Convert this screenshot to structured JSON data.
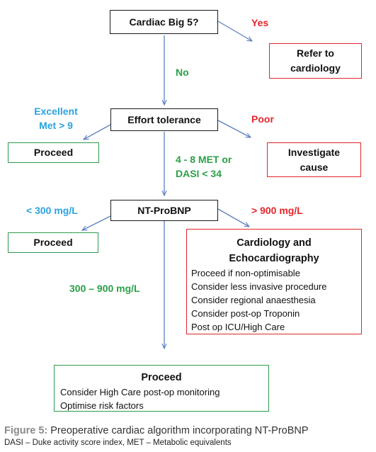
{
  "colors": {
    "arrow": "#5b7fc0",
    "red": "#e3262b",
    "green": "#2aa048",
    "blue": "#2ba3dd"
  },
  "nodes": {
    "cardiac_big5": "Cardiac Big 5?",
    "refer_cardiology": [
      "Refer to",
      "cardiology"
    ],
    "effort_tolerance": "Effort tolerance",
    "proceed_1": "Proceed",
    "investigate_cause": [
      "Investigate",
      "cause"
    ],
    "nt_probnp": "NT-ProBNP",
    "proceed_2": "Proceed",
    "cardio_echo": {
      "title": [
        "Cardiology and",
        "Echocardiography"
      ],
      "items": [
        "Proceed if non-optimisable",
        "Consider less invasive procedure",
        "Consider regional anaesthesia",
        "Consider post-op Troponin",
        "Post op ICU/High Care"
      ]
    },
    "proceed_final": {
      "title": "Proceed",
      "items": [
        "Consider High Care post-op monitoring",
        "Optimise risk factors"
      ]
    }
  },
  "labels": {
    "yes": "Yes",
    "no": "No",
    "excellent": [
      "Excellent",
      "Met > 9"
    ],
    "poor": "Poor",
    "met_range": [
      "4 - 8 MET or",
      "DASI < 34"
    ],
    "lt300": "< 300 mg/L",
    "gt900": "> 900 mg/L",
    "mid_range": "300 – 900 mg/L"
  },
  "caption": {
    "figure_label": "Figure 5:",
    "title": " Preoperative cardiac algorithm incorporating NT-ProBNP",
    "abbreviations": "DASI – Duke activity score index, MET – Metabolic equivalents"
  }
}
